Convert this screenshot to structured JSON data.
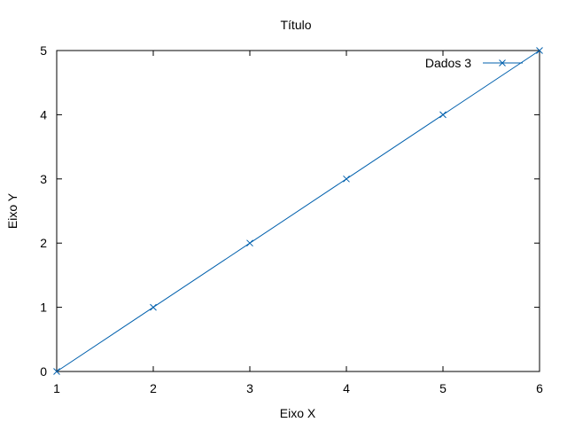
{
  "chart_data": {
    "type": "line",
    "title": "Título",
    "xlabel": "Eixo X",
    "ylabel": "Eixo Y",
    "xlim": [
      1,
      6
    ],
    "ylim": [
      0,
      5
    ],
    "xticks": [
      1,
      2,
      3,
      4,
      5,
      6
    ],
    "yticks": [
      0,
      1,
      2,
      3,
      4,
      5
    ],
    "grid": false,
    "legend_position": "top-right",
    "series": [
      {
        "name": "Dados 3",
        "color": "#0060ad",
        "marker": "x",
        "x": [
          1,
          2,
          3,
          4,
          5,
          6
        ],
        "y": [
          0,
          1,
          2,
          3,
          4,
          5
        ]
      }
    ]
  }
}
